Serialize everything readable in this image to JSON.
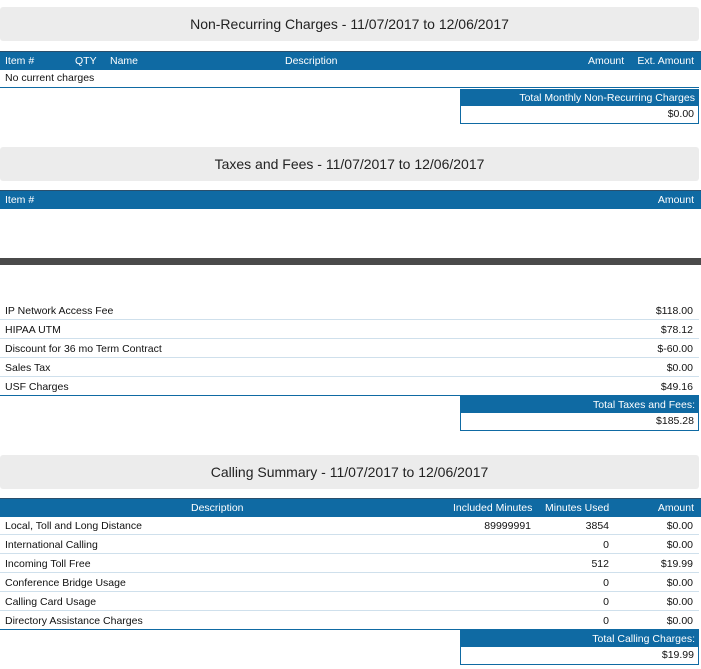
{
  "nonrecurring": {
    "title": "Non-Recurring Charges - 11/07/2017 to 12/06/2017",
    "headers": {
      "item": "Item #",
      "qty": "QTY",
      "name": "Name",
      "description": "Description",
      "amount": "Amount",
      "ext_amount": "Ext. Amount"
    },
    "empty_text": "No current charges",
    "total_label": "Total Monthly Non-Recurring Charges",
    "total_value": "$0.00"
  },
  "taxes": {
    "title": "Taxes and Fees - 11/07/2017 to 12/06/2017",
    "headers": {
      "item": "Item #",
      "amount": "Amount"
    },
    "rows": [
      {
        "name": "IP Network Access Fee",
        "amount": "$118.00"
      },
      {
        "name": "HIPAA UTM",
        "amount": "$78.12"
      },
      {
        "name": "Discount for 36 mo Term Contract",
        "amount": "$-60.00"
      },
      {
        "name": "Sales Tax",
        "amount": "$0.00"
      },
      {
        "name": "USF Charges",
        "amount": "$49.16"
      }
    ],
    "total_label": "Total Taxes and Fees:",
    "total_value": "$185.28"
  },
  "calling": {
    "title": "Calling Summary - 11/07/2017 to 12/06/2017",
    "headers": {
      "description": "Description",
      "included": "Included Minutes",
      "used": "Minutes Used",
      "amount": "Amount"
    },
    "rows": [
      {
        "description": "Local, Toll and Long Distance",
        "included": "89999991",
        "used": "3854",
        "amount": "$0.00"
      },
      {
        "description": "International Calling",
        "included": "",
        "used": "0",
        "amount": "$0.00"
      },
      {
        "description": "Incoming Toll Free",
        "included": "",
        "used": "512",
        "amount": "$19.99"
      },
      {
        "description": "Conference Bridge Usage",
        "included": "",
        "used": "0",
        "amount": "$0.00"
      },
      {
        "description": "Calling Card Usage",
        "included": "",
        "used": "0",
        "amount": "$0.00"
      },
      {
        "description": "Directory Assistance Charges",
        "included": "",
        "used": "0",
        "amount": "$0.00"
      }
    ],
    "total_label": "Total Calling Charges:",
    "total_value": "$19.99"
  },
  "colors": {
    "header_blue": "#0f6aa3",
    "banner_gray": "#ececec",
    "divider": "#4a4a4a"
  }
}
